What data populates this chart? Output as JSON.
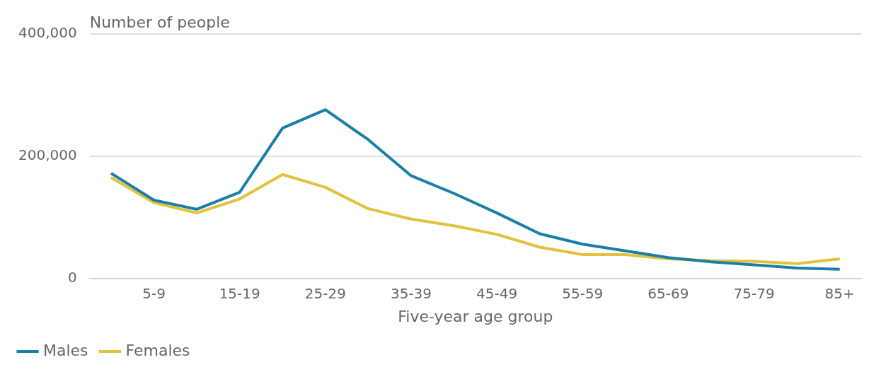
{
  "chart_data": {
    "type": "line",
    "ylabel": "Number of people",
    "xlabel": "Five-year age group",
    "categories": [
      null,
      "5-9",
      null,
      "15-19",
      null,
      "25-29",
      null,
      "35-39",
      null,
      "45-49",
      null,
      "55-59",
      null,
      "65-69",
      null,
      "75-79",
      null,
      "85+"
    ],
    "series": [
      {
        "name": "Males",
        "color": "#1a7fa6",
        "values": [
          172000,
          128000,
          113000,
          141000,
          246000,
          276000,
          227000,
          168000,
          139000,
          107000,
          73000,
          56000,
          45000,
          34000,
          27000,
          22000,
          17000,
          15000
        ]
      },
      {
        "name": "Females",
        "color": "#e2c23c",
        "values": [
          165000,
          124000,
          107000,
          130000,
          170000,
          149000,
          114000,
          97000,
          86000,
          72000,
          51000,
          39000,
          39000,
          32000,
          29000,
          28000,
          24000,
          32000
        ]
      }
    ],
    "ylim": [
      0,
      400000
    ],
    "yticks": [
      0,
      {
        "value": 200000,
        "label": "200,000"
      },
      {
        "value": 400000,
        "label": "400,000"
      }
    ],
    "grid": "y",
    "legend": "bottom left",
    "marker": "none",
    "line_style": "solid"
  }
}
